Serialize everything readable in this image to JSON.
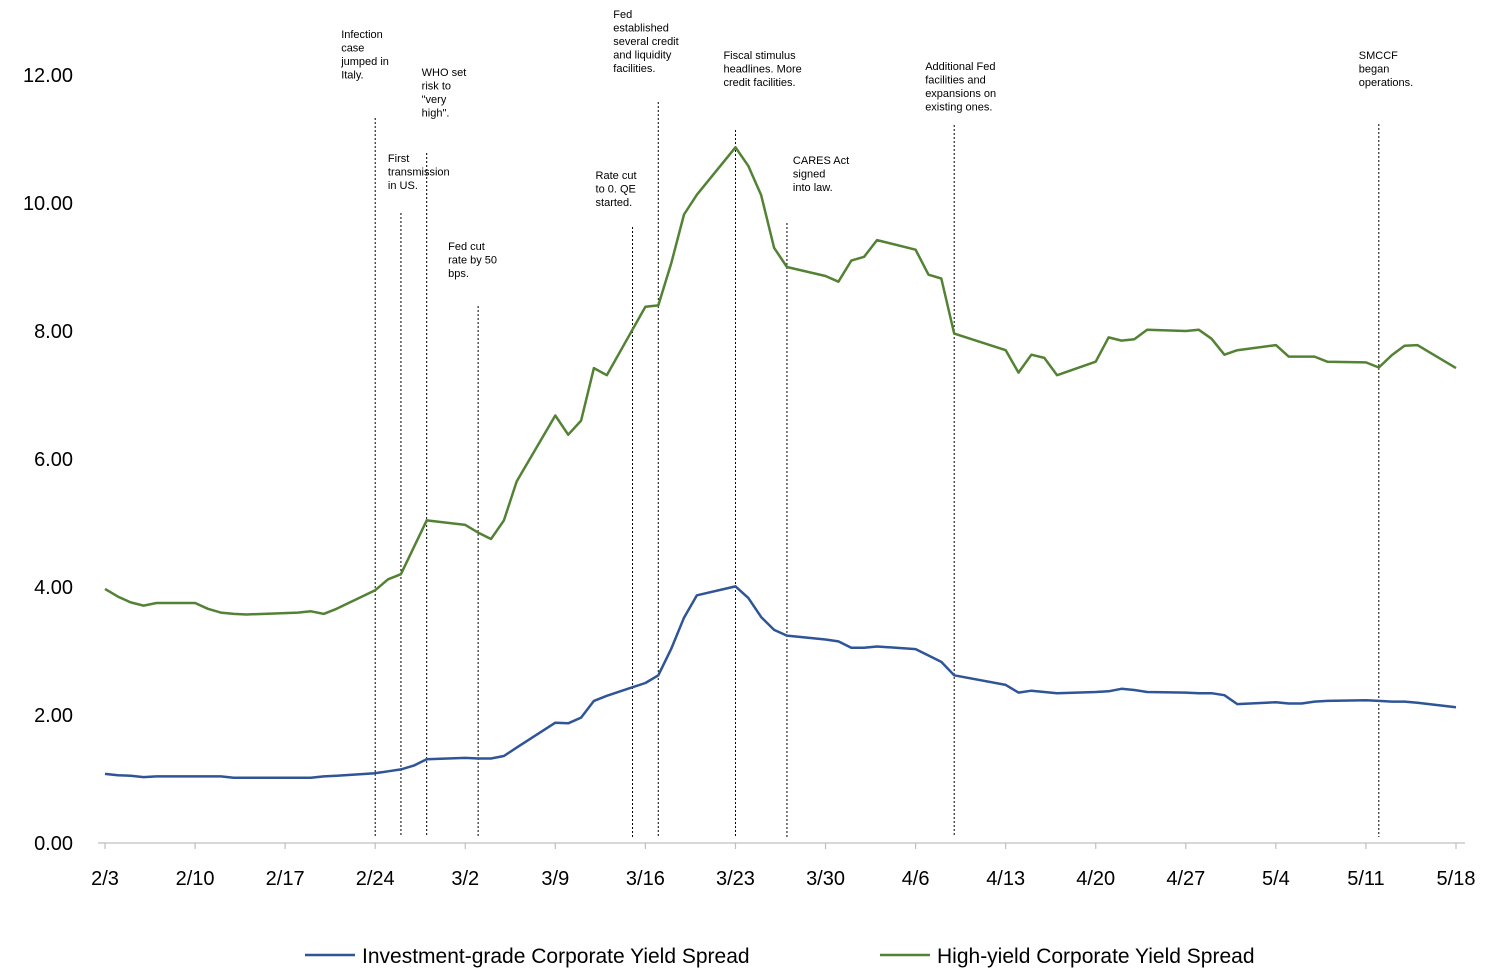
{
  "chart_data": {
    "type": "line",
    "x": [
      "2/3",
      "2/4",
      "2/5",
      "2/6",
      "2/7",
      "2/10",
      "2/11",
      "2/12",
      "2/13",
      "2/14",
      "2/18",
      "2/19",
      "2/20",
      "2/21",
      "2/24",
      "2/25",
      "2/26",
      "2/27",
      "2/28",
      "3/2",
      "3/3",
      "3/4",
      "3/5",
      "3/6",
      "3/9",
      "3/10",
      "3/11",
      "3/12",
      "3/13",
      "3/16",
      "3/17",
      "3/18",
      "3/19",
      "3/20",
      "3/23",
      "3/24",
      "3/25",
      "3/26",
      "3/27",
      "3/30",
      "3/31",
      "4/1",
      "4/2",
      "4/3",
      "4/6",
      "4/7",
      "4/8",
      "4/9",
      "4/13",
      "4/14",
      "4/15",
      "4/16",
      "4/17",
      "4/20",
      "4/21",
      "4/22",
      "4/23",
      "4/24",
      "4/27",
      "4/28",
      "4/29",
      "4/30",
      "5/1",
      "5/4",
      "5/5",
      "5/6",
      "5/7",
      "5/8",
      "5/11",
      "5/12",
      "5/13",
      "5/14",
      "5/15",
      "5/18"
    ],
    "series": [
      {
        "name": "Investment-grade Corporate Yield Spread",
        "color": "#2f5597",
        "values": [
          1.08,
          1.06,
          1.05,
          1.03,
          1.04,
          1.04,
          1.04,
          1.04,
          1.02,
          1.02,
          1.02,
          1.02,
          1.04,
          1.05,
          1.09,
          1.12,
          1.15,
          1.21,
          1.31,
          1.33,
          1.32,
          1.32,
          1.36,
          1.49,
          1.88,
          1.87,
          1.96,
          2.22,
          2.3,
          2.5,
          2.62,
          3.03,
          3.52,
          3.87,
          4.01,
          3.83,
          3.53,
          3.33,
          3.24,
          3.18,
          3.15,
          3.05,
          3.05,
          3.07,
          3.03,
          2.93,
          2.83,
          2.62,
          2.47,
          2.35,
          2.38,
          2.36,
          2.34,
          2.36,
          2.37,
          2.41,
          2.39,
          2.36,
          2.35,
          2.34,
          2.34,
          2.31,
          2.17,
          2.2,
          2.18,
          2.18,
          2.21,
          2.22,
          2.23,
          2.22,
          2.21,
          2.21,
          2.19,
          2.12
        ]
      },
      {
        "name": "High-yield Corporate Yield Spread",
        "color": "#548235",
        "values": [
          3.97,
          3.85,
          3.76,
          3.71,
          3.75,
          3.75,
          3.66,
          3.6,
          3.58,
          3.57,
          3.6,
          3.62,
          3.58,
          3.66,
          3.95,
          4.12,
          4.2,
          4.62,
          5.04,
          4.97,
          4.85,
          4.75,
          5.04,
          5.65,
          6.68,
          6.38,
          6.6,
          7.42,
          7.31,
          8.38,
          8.4,
          9.05,
          9.82,
          10.13,
          10.87,
          10.58,
          10.12,
          9.3,
          9.0,
          8.86,
          8.77,
          9.1,
          9.16,
          9.42,
          9.27,
          8.88,
          8.82,
          7.96,
          7.7,
          7.35,
          7.63,
          7.58,
          7.31,
          7.52,
          7.9,
          7.85,
          7.87,
          8.02,
          8.0,
          8.02,
          7.88,
          7.63,
          7.7,
          7.78,
          7.6,
          7.6,
          7.6,
          7.52,
          7.51,
          7.43,
          7.62,
          7.77,
          7.78,
          7.42
        ]
      }
    ],
    "xticks": [
      "2/3",
      "2/10",
      "2/17",
      "2/24",
      "3/2",
      "3/9",
      "3/16",
      "3/23",
      "3/30",
      "4/6",
      "4/13",
      "4/20",
      "4/27",
      "5/4",
      "5/11",
      "5/18"
    ],
    "ylim": [
      0,
      12
    ],
    "yticks": [
      {
        "value": 0,
        "label": "0.00"
      },
      {
        "value": 2,
        "label": "2.00"
      },
      {
        "value": 4,
        "label": "4.00"
      },
      {
        "value": 6,
        "label": "6.00"
      },
      {
        "value": 8,
        "label": "8.00"
      },
      {
        "value": 10,
        "label": "10.00"
      },
      {
        "value": 12,
        "label": "12.00"
      }
    ],
    "legend": "bottom",
    "annotations": [
      {
        "x": "2/24",
        "lines": [
          "Infection",
          "case",
          "jumped in",
          "Italy."
        ]
      },
      {
        "x": "2/26",
        "lines": [
          "First",
          "transmission",
          "in US."
        ]
      },
      {
        "x": "2/28",
        "lines": [
          "WHO set",
          "risk to",
          "\"very",
          "high\"."
        ]
      },
      {
        "x": "3/3",
        "lines": [
          "Fed cut",
          "rate by 50",
          "bps."
        ]
      },
      {
        "x": "3/15",
        "lines": [
          "Rate cut",
          "to 0. QE",
          "started."
        ]
      },
      {
        "x": "3/17",
        "lines": [
          "Fed",
          "established",
          "several credit",
          "and liquidity",
          "facilities."
        ]
      },
      {
        "x": "3/23",
        "lines": [
          "Fiscal stimulus",
          "headlines.  More",
          "credit facilities."
        ]
      },
      {
        "x": "3/27",
        "lines": [
          "CARES Act",
          "signed",
          "into law."
        ]
      },
      {
        "x": "4/9",
        "lines": [
          "Additional Fed",
          "facilities and",
          "expansions on",
          "existing ones."
        ]
      },
      {
        "x": "5/12",
        "lines": [
          "SMCCF",
          "began",
          "operations."
        ]
      }
    ]
  }
}
